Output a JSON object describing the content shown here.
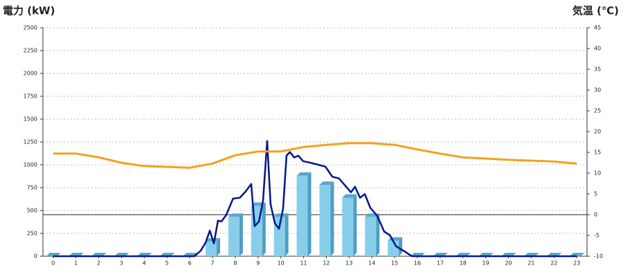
{
  "chart_data": {
    "type": "bar",
    "title": "電力 (kW)",
    "y2_title": "気温 (℃)",
    "title_color": "#1b5fae",
    "y2_title_color": "#f0861e",
    "categories": [
      "0",
      "1",
      "2",
      "3",
      "4",
      "5",
      "6",
      "7",
      "8",
      "9",
      "10",
      "11",
      "12",
      "13",
      "14",
      "15",
      "16",
      "17",
      "18",
      "19",
      "20",
      "21",
      "22",
      "23"
    ],
    "xlim": [
      -0.45,
      23.45
    ],
    "ylim": [
      0,
      2500
    ],
    "yticks": [
      0,
      250,
      500,
      750,
      1000,
      1250,
      1500,
      1750,
      2000,
      2250,
      2500
    ],
    "y2lim": [
      -10,
      45
    ],
    "y2ticks": [
      -10,
      -5,
      0,
      5,
      10,
      15,
      20,
      25,
      30,
      35,
      40,
      45
    ],
    "grid": true,
    "y2_zero_line": true,
    "series": [
      {
        "type": "bar",
        "color": "#87ceeb",
        "values": [
          0,
          0,
          0,
          0,
          0,
          0,
          0,
          160,
          430,
          550,
          430,
          880,
          780,
          640,
          430,
          170,
          0,
          0,
          0,
          0,
          0,
          0,
          0,
          0
        ]
      },
      {
        "type": "line",
        "color": "#0a1a8c",
        "x": [
          0,
          6.2,
          6.48,
          6.7,
          6.88,
          7.06,
          7.24,
          7.39,
          7.6,
          7.9,
          8.2,
          8.46,
          8.7,
          8.85,
          9.04,
          9.22,
          9.4,
          9.55,
          9.74,
          9.92,
          10.1,
          10.25,
          10.4,
          10.59,
          10.77,
          10.98,
          11.35,
          11.96,
          12.26,
          12.56,
          12.87,
          13.08,
          13.26,
          13.48,
          13.69,
          13.93,
          14.24,
          14.54,
          14.79,
          15.06,
          15.39,
          15.76,
          23
        ],
        "values": [
          0,
          0,
          60,
          150,
          280,
          140,
          390,
          380,
          450,
          630,
          640,
          710,
          790,
          330,
          380,
          610,
          1260,
          570,
          360,
          300,
          520,
          1100,
          1140,
          1080,
          1100,
          1040,
          1020,
          980,
          870,
          850,
          760,
          700,
          760,
          640,
          680,
          530,
          440,
          270,
          230,
          110,
          60,
          0,
          0
        ]
      },
      {
        "type": "line",
        "axis": "y2",
        "color": "#f5a01a",
        "values": [
          14.7,
          14.7,
          13.8,
          12.5,
          11.7,
          11.5,
          11.3,
          12.3,
          14.3,
          15.2,
          15.2,
          16.3,
          16.8,
          17.2,
          17.2,
          16.8,
          15.7,
          14.7,
          13.8,
          13.5,
          13.2,
          13.0,
          12.8,
          12.3
        ]
      }
    ]
  }
}
